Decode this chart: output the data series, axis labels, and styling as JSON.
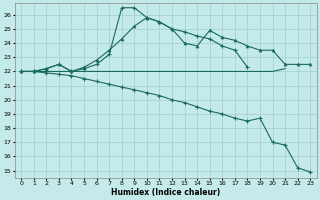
{
  "xlabel": "Humidex (Indice chaleur)",
  "bg_color": "#c5eaea",
  "line_color": "#1a6b5a",
  "grid_color": "#9ecfcf",
  "xlim": [
    -0.5,
    23.5
  ],
  "ylim": [
    14.5,
    26.8
  ],
  "yticks": [
    15,
    16,
    17,
    18,
    19,
    20,
    21,
    22,
    23,
    24,
    25,
    26
  ],
  "xticks": [
    0,
    1,
    2,
    3,
    4,
    5,
    6,
    7,
    8,
    9,
    10,
    11,
    12,
    13,
    14,
    15,
    16,
    17,
    18,
    19,
    20,
    21,
    22,
    23
  ],
  "curve_plus_x": [
    0,
    1,
    2,
    3,
    4,
    5,
    6,
    7,
    8,
    9,
    10,
    11,
    12,
    13,
    14,
    15,
    16,
    17,
    18
  ],
  "curve_plus_y": [
    22.0,
    22.0,
    22.2,
    22.5,
    22.0,
    22.2,
    22.5,
    23.2,
    26.5,
    26.5,
    25.8,
    25.5,
    25.0,
    24.8,
    24.5,
    24.3,
    23.8,
    23.5,
    22.3
  ],
  "curve_tri_x": [
    0,
    1,
    2,
    3,
    4,
    5,
    6,
    7,
    8,
    9,
    10,
    11,
    12,
    13,
    14,
    15,
    16,
    17,
    18,
    19,
    20,
    21,
    22,
    23
  ],
  "curve_tri_y": [
    22.0,
    22.0,
    22.2,
    22.5,
    22.0,
    22.3,
    22.8,
    23.5,
    24.3,
    25.2,
    25.8,
    25.5,
    25.0,
    24.0,
    23.8,
    24.9,
    24.4,
    24.2,
    23.8,
    23.5,
    23.5,
    22.5,
    22.5,
    22.5
  ],
  "curve_flat_x": [
    0,
    1,
    2,
    3,
    4,
    5,
    6,
    7,
    8,
    9,
    10,
    11,
    12,
    13,
    14,
    15,
    16,
    17,
    18,
    19,
    20,
    21
  ],
  "curve_flat_y": [
    22.0,
    22.0,
    22.0,
    22.0,
    22.0,
    22.0,
    22.0,
    22.0,
    22.0,
    22.0,
    22.0,
    22.0,
    22.0,
    22.0,
    22.0,
    22.0,
    22.0,
    22.0,
    22.0,
    22.0,
    22.0,
    22.2
  ],
  "curve_desc_x": [
    0,
    1,
    2,
    3,
    4,
    5,
    6,
    7,
    8,
    9,
    10,
    11,
    12,
    13,
    14,
    15,
    16,
    17,
    18,
    19,
    20,
    21,
    22,
    23
  ],
  "curve_desc_y": [
    22.0,
    22.0,
    21.9,
    21.8,
    21.7,
    21.5,
    21.3,
    21.1,
    20.9,
    20.7,
    20.5,
    20.3,
    20.0,
    19.8,
    19.5,
    19.2,
    19.0,
    18.7,
    18.5,
    18.7,
    17.0,
    16.8,
    15.2,
    14.9
  ]
}
